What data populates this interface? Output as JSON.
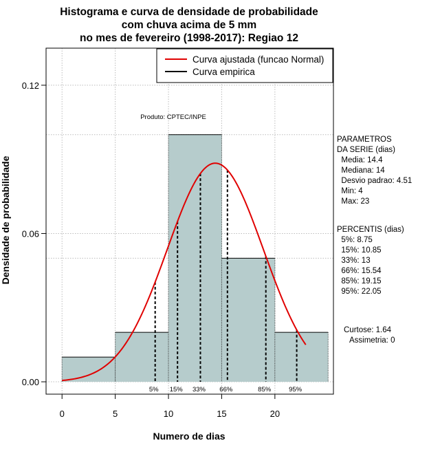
{
  "chart_data": {
    "type": "bar",
    "title_lines": [
      "Histograma e curva de densidade de probabilidade",
      "com chuva acima de 5 mm",
      "no mes de fevereiro (1998-2017): Regiao 12"
    ],
    "xlabel": "Numero de dias",
    "ylabel": "Densidade de probabilidade",
    "xlim": [
      -1.5,
      25.5
    ],
    "ylim": [
      -0.005,
      0.135
    ],
    "x_ticks": [
      0,
      5,
      10,
      15,
      20
    ],
    "x_tick_labels": [
      "0",
      "5",
      "10",
      "15",
      "20"
    ],
    "y_ticks": [
      0.0,
      0.06,
      0.12
    ],
    "y_tick_labels": [
      "0.00",
      "0.06",
      "0.12"
    ],
    "grid_x": [
      0,
      5,
      10,
      15,
      20
    ],
    "grid_y": [
      0.0,
      0.05,
      0.06,
      0.1,
      0.12
    ],
    "bins": [
      {
        "start": 0,
        "end": 5,
        "density": 0.01
      },
      {
        "start": 5,
        "end": 10,
        "density": 0.02
      },
      {
        "start": 10,
        "end": 15,
        "density": 0.1
      },
      {
        "start": 15,
        "end": 20,
        "density": 0.05
      },
      {
        "start": 20,
        "end": 25,
        "density": 0.02
      }
    ],
    "normal_curve": {
      "mean": 14.4,
      "sd": 4.51,
      "x_from": 0,
      "x_to": 22.9,
      "color": "#e00000"
    },
    "percentile_lines": [
      {
        "label": "5%",
        "x": 8.75
      },
      {
        "label": "15%",
        "x": 10.85
      },
      {
        "label": "33%",
        "x": 13
      },
      {
        "label": "66%",
        "x": 15.54
      },
      {
        "label": "85%",
        "x": 19.15
      },
      {
        "label": "95%",
        "x": 22.05
      }
    ],
    "legend": {
      "position": "top-right",
      "entries": [
        {
          "label": "Curva ajustada (funcao Normal)",
          "color": "#e00000"
        },
        {
          "label": "Curva empirica",
          "color": "#000000"
        }
      ]
    },
    "annotation": "Produto: CPTEC/INPE",
    "bar_color": "#b6cccc",
    "side_text": {
      "params_lines": [
        "PARAMETROS",
        "DA SERIE (dias)",
        "  Media: 14.4",
        "  Mediana: 14",
        "  Desvio padrao: 4.51",
        "  Min: 4",
        "  Max: 23"
      ],
      "percentis_lines": [
        "PERCENTIS (dias)",
        "  5%: 8.75",
        "  15%: 10.85",
        "  33%: 13",
        "  66%: 15.54",
        "  85%: 19.15",
        "  95%: 22.05"
      ],
      "curtose": "Curtose: 1.64",
      "assimetria": "Assimetria: 0"
    }
  }
}
